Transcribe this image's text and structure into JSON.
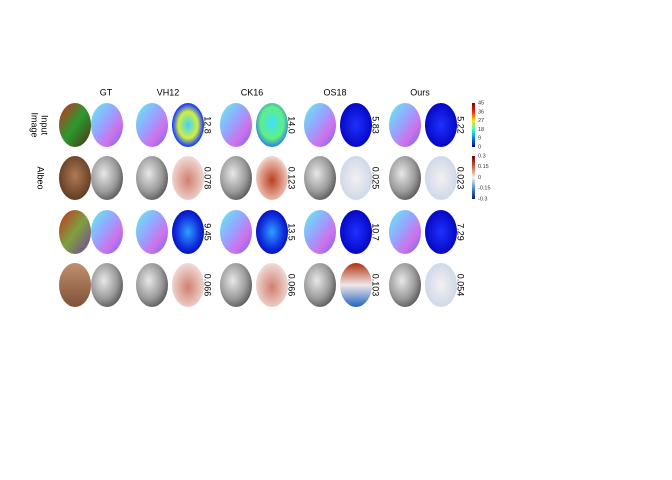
{
  "columns": [
    "GT",
    "VH12",
    "CK16",
    "OS18",
    "Ours"
  ],
  "input_label": [
    "Input",
    "Image"
  ],
  "albedo_label": "Albeo",
  "errors": [
    [
      "12.8",
      "14.0",
      "5.83",
      "5.22"
    ],
    [
      "0.078",
      "0.123",
      "0.025",
      "0.023"
    ],
    [
      "9.45",
      "13.5",
      "10.7",
      "7.29"
    ],
    [
      "0.066",
      "0.066",
      "0.103",
      "0.054"
    ]
  ],
  "normal_colorbar_ticks": [
    "45",
    "36",
    "27",
    "18",
    "9",
    "0"
  ],
  "albedo_colorbar_ticks": [
    "0.3",
    "0.15",
    "0",
    "-0.15",
    "-0.3"
  ]
}
